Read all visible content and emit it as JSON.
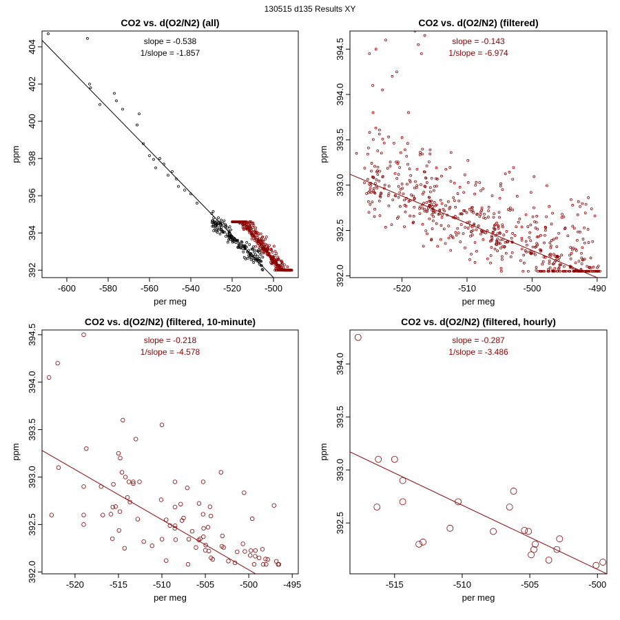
{
  "figure_title": "130515   d135   Results XY",
  "colors": {
    "all": "#000000",
    "filtered": "#8b0000"
  },
  "chart_data": [
    {
      "type": "scatter",
      "title": "CO2 vs. d(O2/N2) (all)",
      "xlabel": "per meg",
      "ylabel": "ppm",
      "xlim": [
        -612,
        -488
      ],
      "ylim": [
        391.6,
        404.85
      ],
      "xticks": [
        -600,
        -580,
        -560,
        -540,
        -520,
        -500
      ],
      "yticks": [
        392,
        394,
        396,
        398,
        400,
        402,
        404
      ],
      "annotations": [
        "slope = -0.538",
        "1/slope = -1.857"
      ],
      "fit_line": {
        "x": [
          -612,
          -500
        ],
        "y": [
          404.35,
          391.6
        ],
        "color": "#000000"
      },
      "series": [
        {
          "name": "all",
          "color": "#000000",
          "radius": 1.5,
          "cloud": {
            "seed": 11,
            "n": 160,
            "xmin": -530,
            "xmax": -505,
            "ymin": 392.0,
            "ymax": 396.4,
            "trend": [
              -0.09,
              392.3,
              -505
            ]
          },
          "points": [
            [
              -609,
              404.7
            ],
            [
              -590,
              404.45
            ],
            [
              -589,
              402.0
            ],
            [
              -588.5,
              401.8
            ],
            [
              -584,
              400.9
            ],
            [
              -577,
              401.5
            ],
            [
              -576,
              401.1
            ],
            [
              -573,
              400.65
            ],
            [
              -566,
              399.8
            ],
            [
              -565,
              400.4
            ],
            [
              -563,
              398.8
            ],
            [
              -560,
              398.15
            ],
            [
              -558,
              397.95
            ],
            [
              -557,
              397.5
            ],
            [
              -555,
              398.0
            ],
            [
              -553,
              397.7
            ],
            [
              -551,
              397.1
            ],
            [
              -549,
              397.3
            ],
            [
              -547,
              396.9
            ],
            [
              -546,
              396.5
            ],
            [
              -543,
              396.3
            ],
            [
              -540,
              396.1
            ],
            [
              -537,
              395.6
            ]
          ]
        },
        {
          "name": "filtered",
          "color": "#8b0000",
          "radius": 1.5,
          "cloud": {
            "seed": 23,
            "n": 420,
            "xmin": -520,
            "xmax": -491,
            "ymin": 392.0,
            "ymax": 394.6,
            "trend": [
              -0.143,
              392.2,
              -498
            ]
          },
          "points": []
        }
      ]
    },
    {
      "type": "scatter",
      "title": "CO2 vs. d(O2/N2) (filtered)",
      "xlabel": "per meg",
      "ylabel": "ppm",
      "xlim": [
        -528,
        -488.5
      ],
      "ylim": [
        391.98,
        394.7
      ],
      "xticks": [
        -520,
        -510,
        -500,
        -490
      ],
      "yticks": [
        392.0,
        392.5,
        393.0,
        393.5,
        394.0,
        394.5
      ],
      "annotations": [
        "slope = -0.143",
        "1/slope = -6.974"
      ],
      "fit_line": {
        "x": [
          -528,
          -490
        ],
        "y": [
          393.12,
          391.98
        ],
        "color": "#8b0000"
      },
      "series": [
        {
          "name": "filtered",
          "color": "#8b0000",
          "radius": 1.5,
          "cloud": {
            "seed": 37,
            "n": 620,
            "xmin": -526,
            "xmax": -489.5,
            "ymin": 392.05,
            "ymax": 393.8,
            "trend": [
              -0.03,
              392.4,
              -505
            ]
          },
          "points": [
            [
              -525,
              394.45
            ],
            [
              -524,
              394.5
            ],
            [
              -523,
              394.05
            ],
            [
              -522.5,
              394.6
            ],
            [
              -521.5,
              394.2
            ],
            [
              -520.8,
              394.25
            ],
            [
              -518,
              394.7
            ],
            [
              -517.5,
              394.55
            ],
            [
              -517,
              394.45
            ],
            [
              -516.5,
              394.65
            ],
            [
              -519,
              393.8
            ],
            [
              -527,
              393.35
            ],
            [
              -524.5,
              394.1
            ]
          ]
        }
      ]
    },
    {
      "type": "scatter",
      "title": "CO2 vs. d(O2/N2) (filtered, 10-minute)",
      "xlabel": "per meg",
      "ylabel": "ppm",
      "xlim": [
        -523.8,
        -494.3
      ],
      "ylim": [
        391.98,
        394.55
      ],
      "xticks": [
        -520,
        -515,
        -510,
        -505,
        -500,
        -495
      ],
      "yticks": [
        392.0,
        392.5,
        393.0,
        393.5,
        394.0,
        394.5
      ],
      "annotations": [
        "slope = -0.218",
        "1/slope = -4.578"
      ],
      "fit_line": {
        "x": [
          -523.8,
          -499.2
        ],
        "y": [
          393.28,
          391.98
        ],
        "color": "#8b0000"
      },
      "series": [
        {
          "name": "10-minute",
          "color": "#8b0000",
          "radius": 2.8,
          "cloud": {
            "seed": 53,
            "n": 70,
            "xmin": -516,
            "xmax": -496,
            "ymin": 392.08,
            "ymax": 392.95,
            "trend": [
              -0.03,
              392.35,
              -506
            ]
          },
          "points": [
            [
              -523,
              394.05
            ],
            [
              -522,
              394.2
            ],
            [
              -519,
              394.5
            ],
            [
              -522.7,
              392.6
            ],
            [
              -521.9,
              393.1
            ],
            [
              -519,
              392.5
            ],
            [
              -519,
              392.6
            ],
            [
              -519,
              392.9
            ],
            [
              -518.7,
              393.3
            ],
            [
              -517,
              392.9
            ],
            [
              -514.5,
              393.6
            ],
            [
              -513,
              393.4
            ],
            [
              -510,
              393.55
            ],
            [
              -515,
              393.25
            ],
            [
              -514.8,
              393.2
            ],
            [
              -514.6,
              393.05
            ],
            [
              -514.2,
              393.0
            ],
            [
              -513.8,
              392.95
            ],
            [
              -513.3,
              392.95
            ],
            [
              -516.8,
              392.6
            ],
            [
              -515.7,
              392.35
            ],
            [
              -514.3,
              392.25
            ],
            [
              -503.2,
              393.05
            ],
            [
              -508.5,
              392.95
            ]
          ]
        }
      ]
    },
    {
      "type": "scatter",
      "title": "CO2 vs. d(O2/N2) (filtered, hourly)",
      "xlabel": "per meg",
      "ylabel": "ppm",
      "xlim": [
        -518.3,
        -499.3
      ],
      "ylim": [
        392.02,
        394.32
      ],
      "xticks": [
        -515,
        -510,
        -505,
        -500
      ],
      "yticks": [
        392.5,
        393.0,
        393.5,
        394.0
      ],
      "annotations": [
        "slope = -0.287",
        "1/slope = -3.486"
      ],
      "fit_line": {
        "x": [
          -518.3,
          -499.3
        ],
        "y": [
          393.17,
          392.02
        ],
        "color": "#8b0000"
      },
      "series": [
        {
          "name": "hourly",
          "color": "#8b0000",
          "radius": 4.5,
          "points": [
            [
              -517.7,
              394.25
            ],
            [
              -516.3,
              392.65
            ],
            [
              -516.2,
              393.1
            ],
            [
              -515.0,
              393.1
            ],
            [
              -514.4,
              392.9
            ],
            [
              -514.4,
              392.7
            ],
            [
              -513.2,
              392.3
            ],
            [
              -512.9,
              392.32
            ],
            [
              -510.9,
              392.45
            ],
            [
              -510.3,
              392.7
            ],
            [
              -507.7,
              392.42
            ],
            [
              -506.5,
              392.65
            ],
            [
              -506.2,
              392.8
            ],
            [
              -505.4,
              392.43
            ],
            [
              -505.1,
              392.42
            ],
            [
              -504.9,
              392.2
            ],
            [
              -504.7,
              392.25
            ],
            [
              -504.6,
              392.3
            ],
            [
              -503.6,
              392.15
            ],
            [
              -503.0,
              392.25
            ],
            [
              -502.8,
              392.35
            ],
            [
              -500.1,
              392.1
            ],
            [
              -499.6,
              392.13
            ]
          ]
        }
      ]
    }
  ]
}
